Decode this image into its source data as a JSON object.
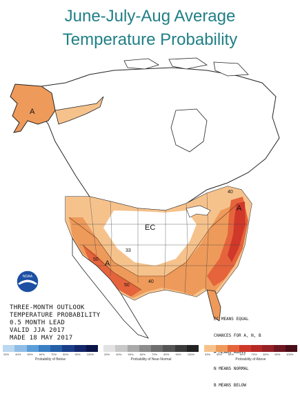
{
  "title": {
    "line1": "June-July-Aug Average",
    "line2": "Temperature Probability"
  },
  "map": {
    "region": "North America",
    "area_labels": [
      "A",
      "A",
      "A",
      "EC"
    ],
    "contour_labels": [
      "33",
      "50",
      "40",
      "50",
      "40"
    ],
    "colors": {
      "above_33": "#f6c28c",
      "above_40": "#ee9a5a",
      "above_50": "#e5643c",
      "above_60": "#d0382a",
      "land": "#ffffff",
      "border": "#222222"
    }
  },
  "caption": {
    "lines": [
      "THREE-MONTH OUTLOOK",
      "TEMPERATURE PROBABILITY",
      "0.5 MONTH LEAD",
      "VALID JJA 2017",
      "MADE 18 MAY 2017"
    ]
  },
  "legend_note": {
    "lines": [
      "EC MEANS EQUAL",
      "CHANCES FOR A, N, B",
      "A MEANS ABOVE",
      "N MEANS NORMAL",
      "B MEANS BELOW"
    ]
  },
  "scales": [
    {
      "label": "Probability of Below",
      "ticks": [
        "33%",
        "40%",
        "50%",
        "60%",
        "70%",
        "80%",
        "90%",
        "100%"
      ],
      "colors": [
        "#bcd7f0",
        "#8fbde6",
        "#5c9fd8",
        "#3a7fc4",
        "#2460a8",
        "#1a3f88",
        "#13276a",
        "#0b1448"
      ]
    },
    {
      "label": "Probability of Near-Normal",
      "ticks": [
        "33%",
        "40%",
        "50%",
        "60%",
        "70%",
        "80%",
        "90%",
        "100%"
      ],
      "colors": [
        "#e2e2e2",
        "#c8c8c8",
        "#a9a9a9",
        "#8c8c8c",
        "#6e6e6e",
        "#555555",
        "#3b3b3b",
        "#222222"
      ]
    },
    {
      "label": "Probability of Above",
      "ticks": [
        "33%",
        "40%",
        "50%",
        "60%",
        "70%",
        "80%",
        "90%",
        "100%"
      ],
      "colors": [
        "#f6c28c",
        "#ee9a5a",
        "#e5643c",
        "#d0382a",
        "#b52a25",
        "#962126",
        "#6f1722",
        "#4a0e18"
      ]
    }
  ]
}
